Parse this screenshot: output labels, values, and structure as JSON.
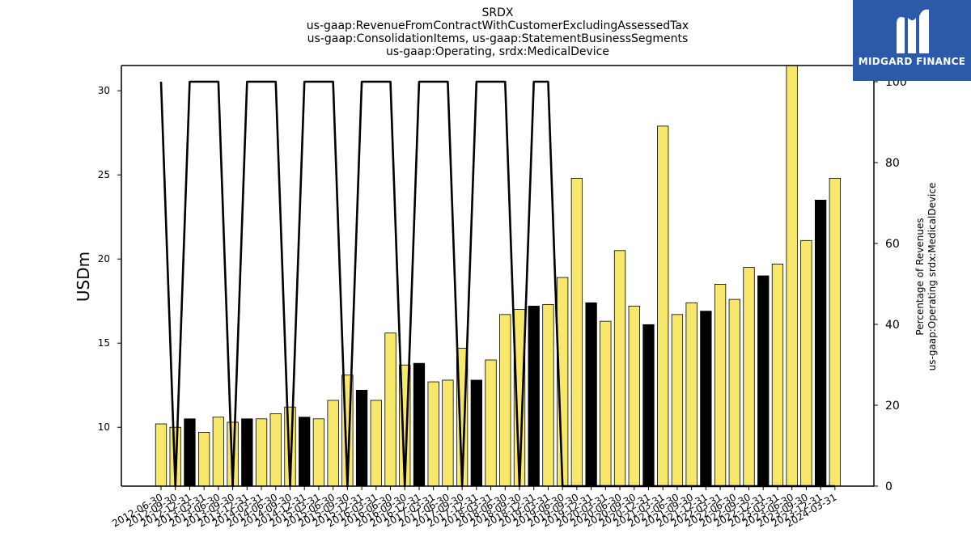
{
  "chart_data": {
    "type": "bar",
    "title_lines": [
      "SRDX",
      "us-gaap:RevenueFromContractWithCustomerExcludingAssessedTax",
      "us-gaap:ConsolidationItems, us-gaap:StatementBusinessSegments",
      "us-gaap:Operating, srdx:MedicalDevice"
    ],
    "ylabel": "USDm",
    "y2label_lines": [
      "Percentage of Revenues",
      "us-gaap:Operating srdx:MedicalDevice"
    ],
    "ylim": [
      6.5,
      31.5
    ],
    "y2lim": [
      0,
      104
    ],
    "yticks": [
      10,
      15,
      20,
      25,
      30
    ],
    "y2ticks": [
      0,
      20,
      40,
      60,
      80,
      100
    ],
    "grid": false,
    "categories": [
      "2012-06-30",
      "2012-09-30",
      "2012-12-31",
      "2013-03-31",
      "2013-06-30",
      "2013-09-30",
      "2013-12-31",
      "2014-03-31",
      "2014-06-30",
      "2014-09-30",
      "2014-12-31",
      "2015-03-31",
      "2015-06-30",
      "2015-09-30",
      "2015-12-31",
      "2016-03-31",
      "2016-06-30",
      "2016-09-30",
      "2016-12-31",
      "2017-03-31",
      "2017-06-30",
      "2017-09-30",
      "2017-12-31",
      "2018-03-31",
      "2018-06-30",
      "2018-09-30",
      "2018-12-31",
      "2019-03-31",
      "2019-06-30",
      "2019-09-30",
      "2019-12-31",
      "2020-03-31",
      "2020-06-30",
      "2020-09-30",
      "2020-12-31",
      "2021-03-31",
      "2021-06-30",
      "2021-09-30",
      "2021-12-31",
      "2022-03-31",
      "2022-06-30",
      "2022-09-30",
      "2022-12-31",
      "2023-03-31",
      "2023-06-30",
      "2023-09-30",
      "2023-12-31",
      "2024-03-31"
    ],
    "series": [
      {
        "type": "bar",
        "axis": "left",
        "values": [
          10.2,
          10.0,
          10.5,
          9.7,
          10.6,
          10.3,
          10.5,
          10.5,
          10.8,
          11.2,
          10.6,
          10.5,
          11.6,
          13.1,
          12.2,
          11.6,
          15.6,
          13.7,
          13.8,
          12.7,
          12.8,
          14.7,
          12.8,
          14.0,
          16.7,
          17.0,
          17.2,
          17.3,
          18.9,
          24.8,
          17.4,
          16.3,
          20.5,
          17.2,
          16.1,
          27.9,
          16.7,
          17.4,
          16.9,
          18.5,
          17.6,
          19.5,
          19.0,
          19.7,
          31.6,
          21.1,
          23.5,
          24.8
        ],
        "colors": [
          "#f7e76a",
          "#f7e76a",
          "#000000",
          "#f7e76a",
          "#f7e76a",
          "#f7e76a",
          "#000000",
          "#f7e76a",
          "#f7e76a",
          "#f7e76a",
          "#000000",
          "#f7e76a",
          "#f7e76a",
          "#f7e76a",
          "#000000",
          "#f7e76a",
          "#f7e76a",
          "#f7e76a",
          "#000000",
          "#f7e76a",
          "#f7e76a",
          "#f7e76a",
          "#000000",
          "#f7e76a",
          "#f7e76a",
          "#f7e76a",
          "#000000",
          "#f7e76a",
          "#f7e76a",
          "#f7e76a",
          "#000000",
          "#f7e76a",
          "#f7e76a",
          "#f7e76a",
          "#000000",
          "#f7e76a",
          "#f7e76a",
          "#f7e76a",
          "#000000",
          "#f7e76a",
          "#f7e76a",
          "#f7e76a",
          "#000000",
          "#f7e76a",
          "#f7e76a",
          "#f7e76a",
          "#000000",
          "#f7e76a"
        ]
      },
      {
        "type": "line",
        "axis": "right",
        "color": "#000000",
        "values": [
          100,
          0,
          100,
          100,
          100,
          0,
          100,
          100,
          100,
          0,
          100,
          100,
          100,
          0,
          100,
          100,
          100,
          0,
          100,
          100,
          100,
          0,
          100,
          100,
          100,
          0,
          100,
          100,
          0,
          0,
          0,
          0,
          0,
          0,
          0,
          0,
          0,
          0,
          0,
          0,
          0,
          0,
          0,
          0,
          0,
          0,
          0,
          0
        ]
      }
    ]
  },
  "logo": {
    "text": "MIDGARD FINANCE",
    "background": "#2d5aa8"
  }
}
